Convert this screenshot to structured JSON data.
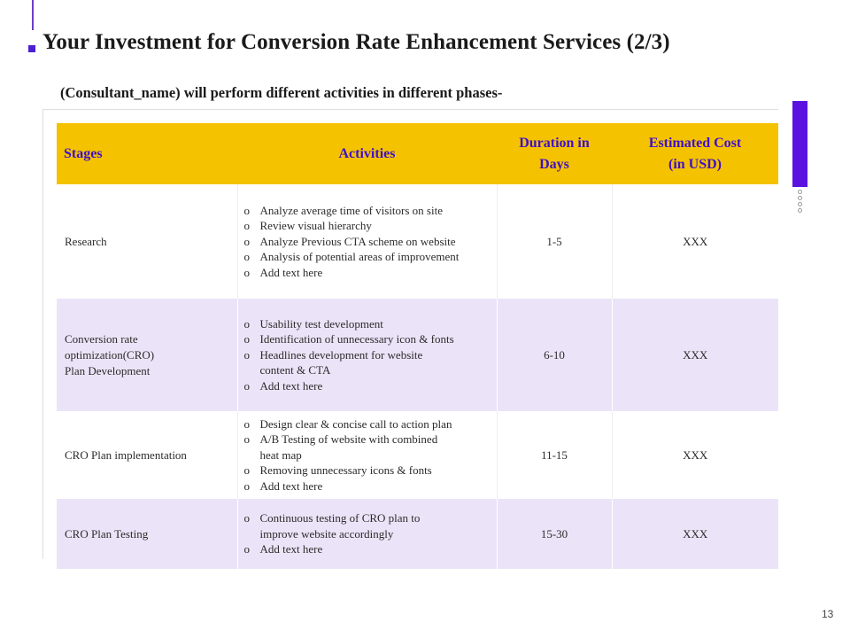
{
  "slide": {
    "title": "Your Investment for Conversion Rate Enhancement Services (2/3)",
    "subtitle": "(Consultant_name) will perform different activities in different phases-",
    "page_number": "13"
  },
  "colors": {
    "header_bg": "#f5c200",
    "header_text": "#4010c8",
    "alt_row_bg": "#ebe4f8",
    "accent": "#5b12e0"
  },
  "table": {
    "headers": {
      "stages": "Stages",
      "activities": "Activities",
      "duration_line1": "Duration in",
      "duration_line2": "Days",
      "cost_line1": "Estimated Cost",
      "cost_line2": "(in USD)"
    },
    "bullet": "o",
    "rows": [
      {
        "stage_lines": [
          "Research"
        ],
        "activities": [
          "Analyze average time of visitors on site",
          "Review visual hierarchy",
          "Analyze Previous CTA scheme on website",
          "Analysis of potential areas of improvement",
          "Add text here"
        ],
        "duration": "1-5",
        "cost": "XXX"
      },
      {
        "stage_lines": [
          "Conversion rate",
          "optimization(CRO)",
          "Plan Development"
        ],
        "activities": [
          "Usability test development",
          "Identification of unnecessary icon & fonts",
          [
            "Headlines development for website",
            "content & CTA"
          ],
          "Add text here"
        ],
        "duration": "6-10",
        "cost": "XXX"
      },
      {
        "stage_lines": [
          "CRO Plan implementation"
        ],
        "activities": [
          "Design clear & concise call to action plan",
          [
            "A/B Testing of website with combined",
            "heat map"
          ],
          "Removing unnecessary icons & fonts",
          "Add text here"
        ],
        "duration": "11-15",
        "cost": "XXX"
      },
      {
        "stage_lines": [
          "CRO Plan Testing"
        ],
        "activities": [
          [
            "Continuous testing of CRO plan to",
            "improve website accordingly"
          ],
          "Add text here"
        ],
        "duration": "15-30",
        "cost": "XXX"
      }
    ]
  }
}
